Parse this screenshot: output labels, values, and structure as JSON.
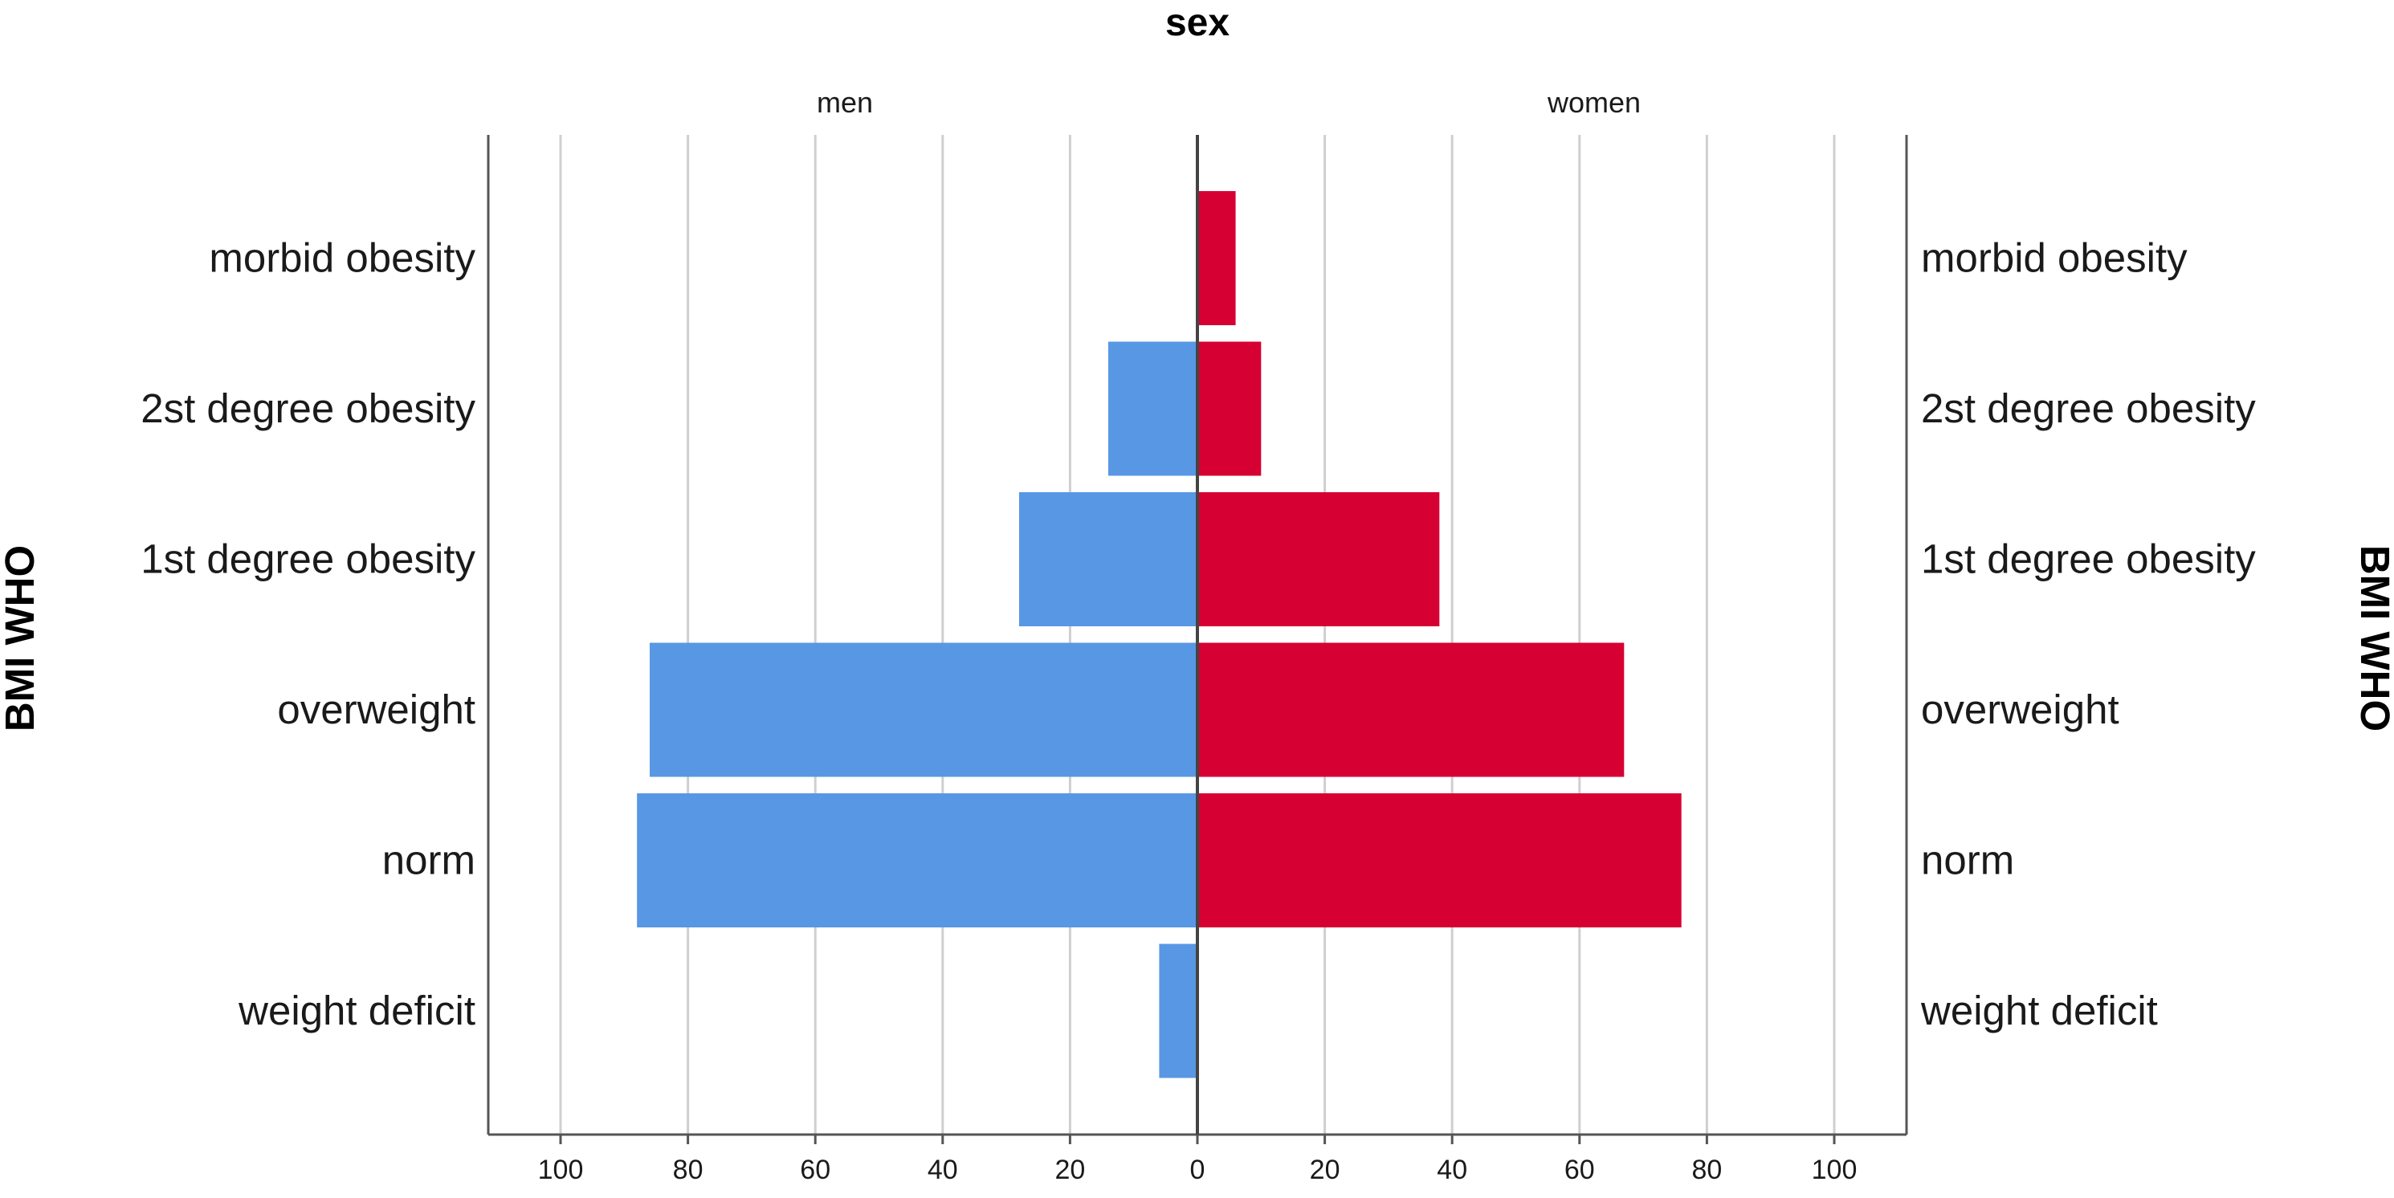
{
  "chart_data": {
    "type": "bar",
    "orientation": "horizontal",
    "layout": "population-pyramid",
    "title": "sex",
    "ylabel": "BMI WHO",
    "panels": [
      "men",
      "women"
    ],
    "categories": [
      "morbid obesity",
      "2st degree obesity",
      "1st degree obesity",
      "overweight",
      "norm",
      "weight deficit"
    ],
    "series": [
      {
        "name": "men",
        "values": [
          0,
          14,
          28,
          86,
          88,
          6
        ],
        "color": "#5897e4"
      },
      {
        "name": "women",
        "values": [
          6,
          10,
          38,
          67,
          76,
          0
        ],
        "color": "#d60032"
      }
    ],
    "xlim": [
      0,
      110
    ],
    "ticks": [
      "100",
      "80",
      "60",
      "40",
      "20",
      "0",
      "20",
      "40",
      "60",
      "80",
      "100"
    ],
    "tick_values": [
      100,
      80,
      60,
      40,
      20,
      0,
      20,
      40,
      60,
      80,
      100
    ],
    "grid": true,
    "gridline_color": "#cfcfcf",
    "axis_color": "#555555"
  }
}
